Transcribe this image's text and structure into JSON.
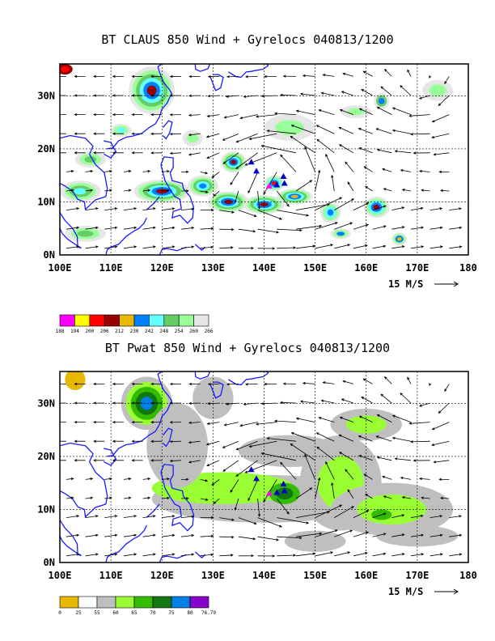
{
  "colors": {
    "coast": "#1a1aff",
    "frame": "#000000",
    "grid": "#000000",
    "claus": [
      "#ff00ff",
      "#ffff00",
      "#ff0000",
      "#990000",
      "#e6b800",
      "#0080ff",
      "#66ffff",
      "#66cc66",
      "#99ff99",
      "#e6e6e6"
    ],
    "pwat": [
      "#e6b800",
      "#ffffff",
      "#bfbfbf",
      "#99ff33",
      "#33bb00",
      "#117711",
      "#0080e6",
      "#8800cc"
    ],
    "storm_magenta": "#ff00ff",
    "storm_blue": "#0000cc"
  },
  "panel1": {
    "title": "BT CLAUS 850 Wind + Gyrelocs 040813/1200",
    "x_ticks": [
      "100E",
      "110E",
      "120E",
      "130E",
      "140E",
      "150E",
      "160E",
      "170E",
      "180"
    ],
    "y_ticks": [
      "0N",
      "10N",
      "20N",
      "30N"
    ],
    "vector_label": "15 M/S",
    "colorbar_labels": [
      "188",
      "194",
      "200",
      "206",
      "212",
      "230",
      "242",
      "248",
      "254",
      "260",
      "266"
    ]
  },
  "panel2": {
    "title": "BT Pwat 850 Wind + Gyrelocs 040813/1200",
    "x_ticks": [
      "100E",
      "110E",
      "120E",
      "130E",
      "140E",
      "150E",
      "160E",
      "170E",
      "180"
    ],
    "y_ticks": [
      "0N",
      "10N",
      "20N",
      "30N"
    ],
    "vector_label": "15 M/S",
    "colorbar_labels": [
      "0",
      "25",
      "55",
      "60",
      "65",
      "70",
      "75",
      "80",
      "76.79"
    ]
  },
  "map": {
    "lon_range": [
      100,
      180
    ],
    "lat_range": [
      0,
      36
    ],
    "gyre_locations": [
      {
        "lon": 141.0,
        "lat": 13.0,
        "color": "magenta"
      },
      {
        "lon": 142.5,
        "lat": 13.2,
        "color": "blue"
      },
      {
        "lon": 144.0,
        "lat": 13.5,
        "color": "blue"
      },
      {
        "lon": 143.8,
        "lat": 14.8,
        "color": "blue"
      },
      {
        "lon": 138.5,
        "lat": 15.8,
        "color": "blue"
      },
      {
        "lon": 137.5,
        "lat": 17.5,
        "color": "blue"
      }
    ]
  }
}
